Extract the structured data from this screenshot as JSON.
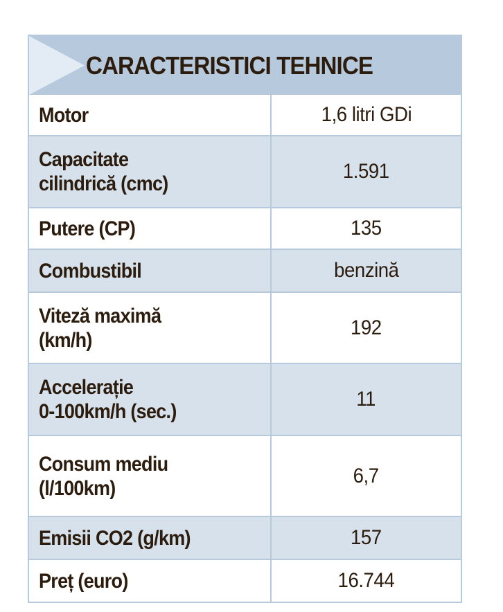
{
  "title": "CARACTERISTICI TEHNICE",
  "colors": {
    "header_bg": "#b7c9dd",
    "row_alt_bg": "#d6e1ec",
    "text": "#2b1c0e"
  },
  "rows": [
    {
      "label": "Motor",
      "value": "1,6 litri GDi"
    },
    {
      "label": "Capacitate\ncilindrică (cmc)",
      "value": "1.591"
    },
    {
      "label": "Putere (CP)",
      "value": "135"
    },
    {
      "label": "Combustibil",
      "value": "benzină"
    },
    {
      "label": "Viteză maximă\n(km/h)",
      "value": "192"
    },
    {
      "label": "Accelerație\n0-100km/h (sec.)",
      "value": "11"
    },
    {
      "label": "Consum mediu\n(l/100km)",
      "value": "6,7"
    },
    {
      "label": "Emisii CO2 (g/km)",
      "value": "157"
    },
    {
      "label": "Preț (euro)",
      "value": "16.744"
    }
  ]
}
